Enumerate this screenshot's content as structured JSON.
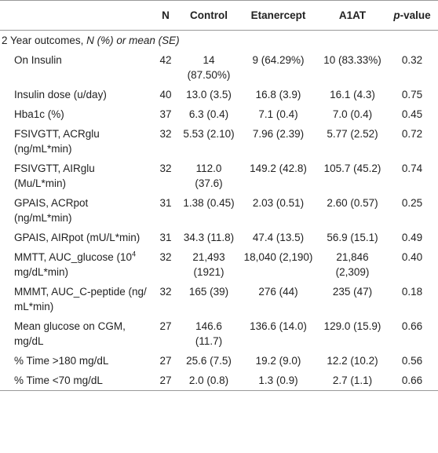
{
  "header": [
    "",
    "N",
    "Control",
    "Etanercept",
    "A1AT",
    [
      "p",
      "-value"
    ]
  ],
  "section": [
    "2 Year outcomes, ",
    "N (%) or mean (SE)"
  ],
  "rows": [
    {
      "label": "On Insulin",
      "n": 42,
      "control": "14 (87.50%)",
      "etanercept": "9 (64.29%)",
      "a1at": "10 (83.33%)",
      "p": "0.32"
    },
    {
      "label": "Insulin dose (u/day)",
      "n": 40,
      "control": "13.0 (3.5)",
      "etanercept": "16.8 (3.9)",
      "a1at": "16.1 (4.3)",
      "p": "0.75"
    },
    {
      "label": "Hba1c (%)",
      "n": 37,
      "control": "6.3 (0.4)",
      "etanercept": "7.1 (0.4)",
      "a1at": "7.0 (0.4)",
      "p": "0.45"
    },
    {
      "label": "FSIVGTT, ACRglu (ng/mL*min)",
      "n": 32,
      "control": "5.53 (2.10)",
      "etanercept": "7.96 (2.39)",
      "a1at": "5.77 (2.52)",
      "p": "0.72"
    },
    {
      "label": "FSIVGTT, AIRglu (Mu/L*min)",
      "n": 32,
      "control": "112.0 (37.6)",
      "etanercept": "149.2 (42.8)",
      "a1at": "105.7 (45.2)",
      "p": "0.74"
    },
    {
      "label": "GPAIS, ACRpot (ng/mL*min)",
      "n": 31,
      "control": "1.38 (0.45)",
      "etanercept": "2.03 (0.51)",
      "a1at": "2.60 (0.57)",
      "p": "0.25"
    },
    {
      "label": "GPAIS, AIRpot (mU/L*min)",
      "n": 31,
      "control": "34.3 (11.8)",
      "etanercept": "47.4 (13.5)",
      "a1at": "56.9 (15.1)",
      "p": "0.49"
    },
    {
      "label": [
        "MMTT, AUC_glucose (10",
        "4",
        " mg/dL*min)"
      ],
      "n": 32,
      "control": "21,493 (1921)",
      "etanercept": "18,040 (2,190)",
      "a1at": "21,846 (2,309)",
      "p": "0.40"
    },
    {
      "label": "MMMT, AUC_C-peptide (ng/ mL*min)",
      "n": 32,
      "control": "165 (39)",
      "etanercept": "276 (44)",
      "a1at": "235 (47)",
      "p": "0.18"
    },
    {
      "label": "Mean glucose on CGM, mg/dL",
      "n": 27,
      "control": "146.6 (11.7)",
      "etanercept": "136.6 (14.0)",
      "a1at": "129.0 (15.9)",
      "p": "0.66"
    },
    {
      "label": "% Time >180 mg/dL",
      "n": 27,
      "control": "25.6 (7.5)",
      "etanercept": "19.2 (9.0)",
      "a1at": "12.2 (10.2)",
      "p": "0.56"
    },
    {
      "label": "% Time <70 mg/dL",
      "n": 27,
      "control": "2.0 (0.8)",
      "etanercept": "1.3 (0.9)",
      "a1at": "2.7 (1.1)",
      "p": "0.66"
    }
  ]
}
